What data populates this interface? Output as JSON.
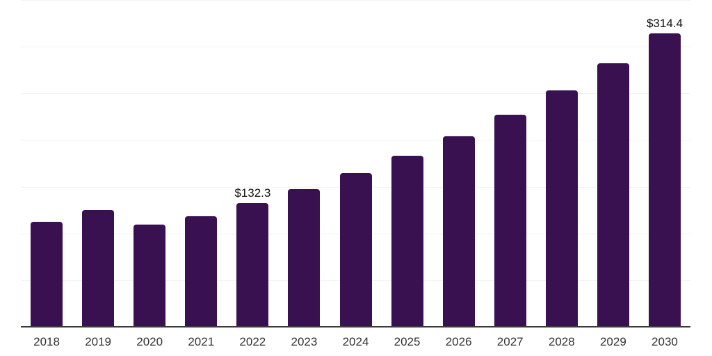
{
  "chart_data": {
    "type": "bar",
    "title": "",
    "xlabel": "",
    "ylabel": "",
    "categories": [
      "2018",
      "2019",
      "2020",
      "2021",
      "2022",
      "2023",
      "2024",
      "2025",
      "2026",
      "2027",
      "2028",
      "2029",
      "2030"
    ],
    "values": [
      112.3,
      125.2,
      109.7,
      118.5,
      132.3,
      147.4,
      164.3,
      183.1,
      204.0,
      227.3,
      253.3,
      282.2,
      314.4
    ],
    "data_labels": {
      "2022": "$132.3",
      "2030": "$314.4"
    },
    "ylim": [
      0,
      350
    ],
    "gridline_step": 50,
    "grid": "horizontal-only",
    "legend": "none",
    "y_axis_tick_labels": "none",
    "bar_color": "#391150",
    "gridline_color": "#f3f3f3",
    "axis_line_color": "#3a3a3a",
    "data_label_color": "#111111",
    "tick_label_color": "#333333",
    "background_color": "#ffffff"
  }
}
